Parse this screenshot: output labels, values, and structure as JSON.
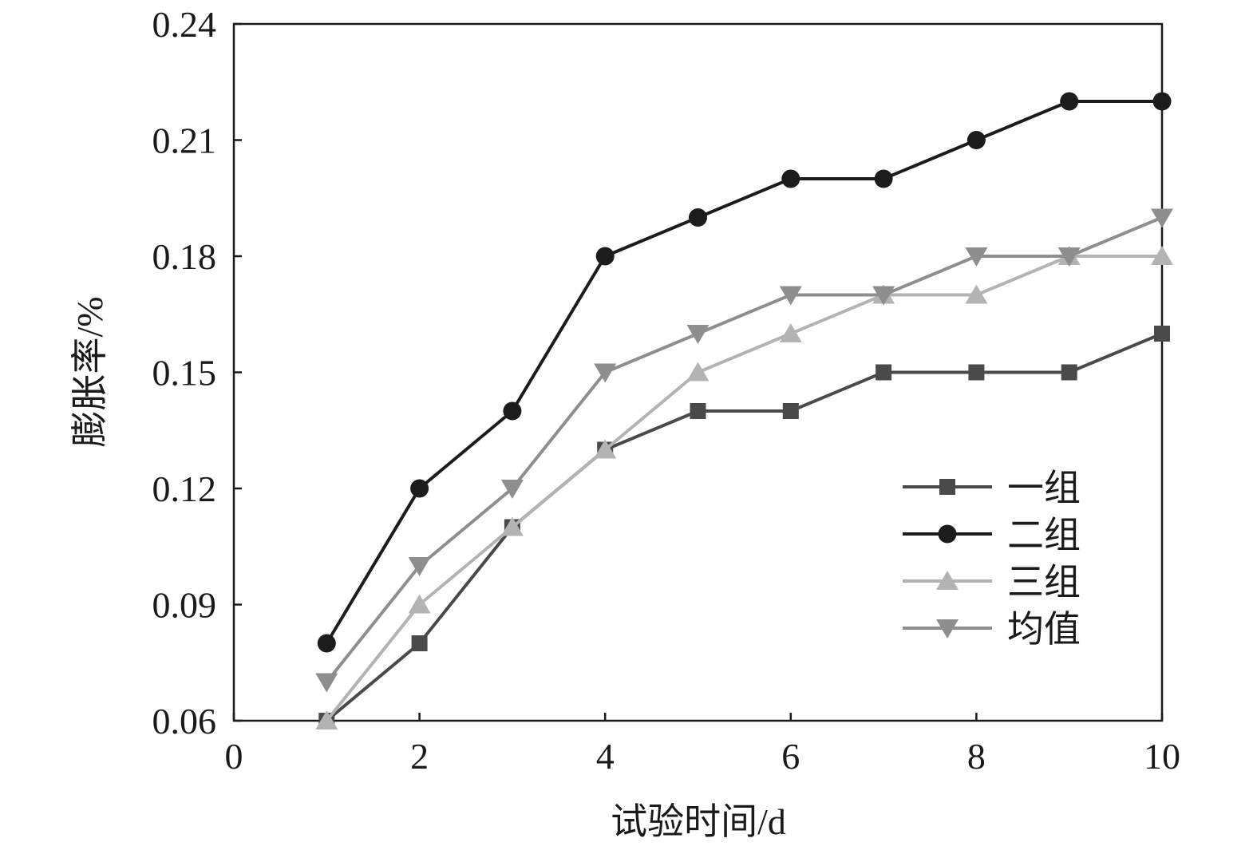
{
  "chart_data": {
    "type": "line",
    "xlabel": "试验时间/d",
    "ylabel": "膨胀率/%",
    "xlim": [
      0,
      10
    ],
    "ylim": [
      0.06,
      0.24
    ],
    "xticks": [
      "0",
      "2",
      "4",
      "6",
      "8",
      "10"
    ],
    "yticks": [
      "0.06",
      "0.09",
      "0.12",
      "0.15",
      "0.18",
      "0.21",
      "0.24"
    ],
    "grid": false,
    "legend_position": "bottom-right",
    "x": [
      1,
      2,
      3,
      4,
      5,
      6,
      7,
      8,
      9,
      10
    ],
    "series": [
      {
        "name": "一组",
        "marker": "square",
        "color": "#4a4a4a",
        "values": [
          0.06,
          0.08,
          0.11,
          0.13,
          0.14,
          0.14,
          0.15,
          0.15,
          0.15,
          0.16
        ]
      },
      {
        "name": "二组",
        "marker": "circle",
        "color": "#1c1c1c",
        "values": [
          0.08,
          0.12,
          0.14,
          0.18,
          0.19,
          0.2,
          0.2,
          0.21,
          0.22,
          0.22
        ]
      },
      {
        "name": "三组",
        "marker": "triangle-up",
        "color": "#b3b3b3",
        "values": [
          0.06,
          0.09,
          0.11,
          0.13,
          0.15,
          0.16,
          0.17,
          0.17,
          0.18,
          0.18
        ]
      },
      {
        "name": "均值",
        "marker": "triangle-down",
        "color": "#8e8e8e",
        "values": [
          0.07,
          0.1,
          0.12,
          0.15,
          0.16,
          0.17,
          0.17,
          0.18,
          0.18,
          0.19
        ]
      }
    ]
  }
}
